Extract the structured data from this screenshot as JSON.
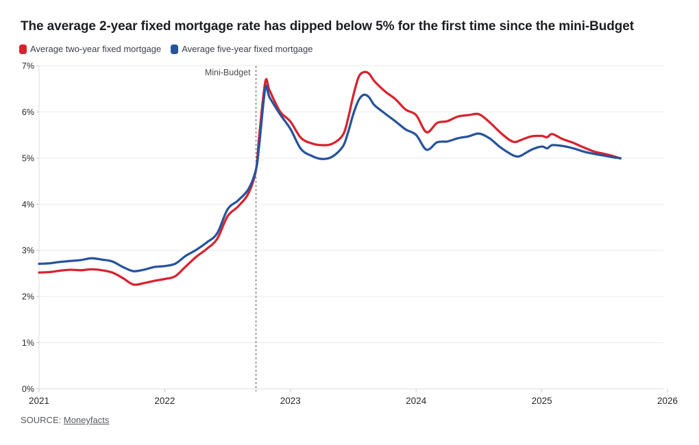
{
  "title": "The average 2-year fixed mortgage rate has dipped below 5% for the first time since the mini-Budget",
  "legend": {
    "items": [
      {
        "label": "Average two-year fixed mortgage",
        "color": "#d7232e"
      },
      {
        "label": "Average five-year fixed mortgage",
        "color": "#27549b"
      }
    ]
  },
  "source": {
    "prefix": "SOURCE:",
    "link_label": "Moneyfacts"
  },
  "colors": {
    "two_year_line": "#d7232e",
    "five_year_line": "#27549b",
    "gridline": "#eaeaea",
    "axis_line": "#dcdcdc",
    "tick": "#c9c9c9",
    "tick_label": "#26282c",
    "annotation_line": "#6b6b6b",
    "annotation_label": "#4d4d4d"
  },
  "chart_data": {
    "type": "line",
    "title": "The average 2-year fixed mortgage rate has dipped below 5% for the first time since the mini-Budget",
    "xlabel": "",
    "ylabel": "",
    "xlim": [
      2021,
      2026
    ],
    "ylim": [
      0,
      7
    ],
    "x_ticks": [
      "2021",
      "2022",
      "2023",
      "2024",
      "2025",
      "2026"
    ],
    "x_tick_values": [
      2021,
      2022,
      2023,
      2024,
      2025,
      2026
    ],
    "y_ticks": [
      "0%",
      "1%",
      "2%",
      "3%",
      "4%",
      "5%",
      "6%",
      "7%"
    ],
    "y_tick_values": [
      0,
      1,
      2,
      3,
      4,
      5,
      6,
      7
    ],
    "grid": "horizontal",
    "legend_position": "top-left",
    "annotation": {
      "label": "Mini-Budget",
      "x": 2022.726,
      "style": "dashed-vertical"
    },
    "series": [
      {
        "name": "Average two-year fixed mortgage",
        "color": "#d7232e",
        "points": [
          [
            2021.0,
            2.52
          ],
          [
            2021.083,
            2.53
          ],
          [
            2021.167,
            2.56
          ],
          [
            2021.25,
            2.58
          ],
          [
            2021.333,
            2.57
          ],
          [
            2021.417,
            2.59
          ],
          [
            2021.5,
            2.57
          ],
          [
            2021.583,
            2.52
          ],
          [
            2021.667,
            2.4
          ],
          [
            2021.75,
            2.26
          ],
          [
            2021.833,
            2.29
          ],
          [
            2021.917,
            2.34
          ],
          [
            2022.0,
            2.38
          ],
          [
            2022.083,
            2.44
          ],
          [
            2022.167,
            2.65
          ],
          [
            2022.25,
            2.86
          ],
          [
            2022.333,
            3.03
          ],
          [
            2022.417,
            3.25
          ],
          [
            2022.5,
            3.74
          ],
          [
            2022.583,
            3.95
          ],
          [
            2022.667,
            4.24
          ],
          [
            2022.726,
            4.74
          ],
          [
            2022.75,
            5.43
          ],
          [
            2022.8,
            6.65
          ],
          [
            2022.833,
            6.47
          ],
          [
            2022.917,
            6.01
          ],
          [
            2023.0,
            5.79
          ],
          [
            2023.083,
            5.44
          ],
          [
            2023.167,
            5.32
          ],
          [
            2023.25,
            5.28
          ],
          [
            2023.333,
            5.31
          ],
          [
            2023.417,
            5.5
          ],
          [
            2023.458,
            5.85
          ],
          [
            2023.5,
            6.35
          ],
          [
            2023.542,
            6.75
          ],
          [
            2023.583,
            6.86
          ],
          [
            2023.625,
            6.83
          ],
          [
            2023.667,
            6.67
          ],
          [
            2023.75,
            6.45
          ],
          [
            2023.833,
            6.28
          ],
          [
            2023.917,
            6.05
          ],
          [
            2024.0,
            5.93
          ],
          [
            2024.083,
            5.56
          ],
          [
            2024.167,
            5.76
          ],
          [
            2024.25,
            5.8
          ],
          [
            2024.333,
            5.9
          ],
          [
            2024.417,
            5.93
          ],
          [
            2024.5,
            5.95
          ],
          [
            2024.583,
            5.78
          ],
          [
            2024.667,
            5.56
          ],
          [
            2024.75,
            5.38
          ],
          [
            2024.792,
            5.35
          ],
          [
            2024.833,
            5.39
          ],
          [
            2024.917,
            5.47
          ],
          [
            2025.0,
            5.48
          ],
          [
            2025.042,
            5.45
          ],
          [
            2025.083,
            5.52
          ],
          [
            2025.167,
            5.41
          ],
          [
            2025.25,
            5.33
          ],
          [
            2025.333,
            5.23
          ],
          [
            2025.417,
            5.14
          ],
          [
            2025.5,
            5.09
          ],
          [
            2025.583,
            5.03
          ],
          [
            2025.625,
            4.99
          ]
        ]
      },
      {
        "name": "Average five-year fixed mortgage",
        "color": "#27549b",
        "points": [
          [
            2021.0,
            2.71
          ],
          [
            2021.083,
            2.72
          ],
          [
            2021.167,
            2.75
          ],
          [
            2021.25,
            2.77
          ],
          [
            2021.333,
            2.79
          ],
          [
            2021.417,
            2.83
          ],
          [
            2021.5,
            2.8
          ],
          [
            2021.583,
            2.76
          ],
          [
            2021.667,
            2.64
          ],
          [
            2021.75,
            2.55
          ],
          [
            2021.833,
            2.58
          ],
          [
            2021.917,
            2.64
          ],
          [
            2022.0,
            2.66
          ],
          [
            2022.083,
            2.71
          ],
          [
            2022.167,
            2.88
          ],
          [
            2022.25,
            3.01
          ],
          [
            2022.333,
            3.17
          ],
          [
            2022.417,
            3.37
          ],
          [
            2022.5,
            3.89
          ],
          [
            2022.583,
            4.08
          ],
          [
            2022.667,
            4.33
          ],
          [
            2022.726,
            4.75
          ],
          [
            2022.75,
            5.23
          ],
          [
            2022.8,
            6.51
          ],
          [
            2022.833,
            6.32
          ],
          [
            2022.917,
            5.95
          ],
          [
            2023.0,
            5.63
          ],
          [
            2023.083,
            5.2
          ],
          [
            2023.167,
            5.05
          ],
          [
            2023.25,
            4.98
          ],
          [
            2023.333,
            5.03
          ],
          [
            2023.417,
            5.25
          ],
          [
            2023.458,
            5.55
          ],
          [
            2023.5,
            5.95
          ],
          [
            2023.542,
            6.25
          ],
          [
            2023.583,
            6.37
          ],
          [
            2023.625,
            6.32
          ],
          [
            2023.667,
            6.15
          ],
          [
            2023.75,
            5.97
          ],
          [
            2023.833,
            5.8
          ],
          [
            2023.917,
            5.62
          ],
          [
            2024.0,
            5.5
          ],
          [
            2024.083,
            5.18
          ],
          [
            2024.167,
            5.34
          ],
          [
            2024.25,
            5.36
          ],
          [
            2024.333,
            5.43
          ],
          [
            2024.417,
            5.47
          ],
          [
            2024.5,
            5.53
          ],
          [
            2024.583,
            5.43
          ],
          [
            2024.667,
            5.24
          ],
          [
            2024.75,
            5.09
          ],
          [
            2024.792,
            5.04
          ],
          [
            2024.833,
            5.05
          ],
          [
            2024.917,
            5.18
          ],
          [
            2025.0,
            5.25
          ],
          [
            2025.042,
            5.21
          ],
          [
            2025.083,
            5.28
          ],
          [
            2025.167,
            5.26
          ],
          [
            2025.25,
            5.21
          ],
          [
            2025.333,
            5.14
          ],
          [
            2025.417,
            5.09
          ],
          [
            2025.5,
            5.05
          ],
          [
            2025.583,
            5.01
          ],
          [
            2025.625,
            5.0
          ]
        ]
      }
    ]
  }
}
